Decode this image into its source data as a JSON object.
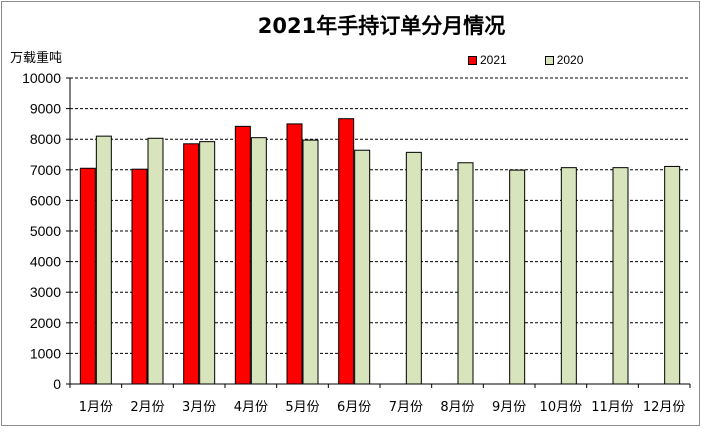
{
  "chart_data": {
    "type": "bar",
    "title": "2021年手持订单分月情况",
    "ylabel": "万载重吨",
    "xlabel": "",
    "ylim": [
      0,
      10000
    ],
    "yticks": [
      0,
      1000,
      2000,
      3000,
      4000,
      5000,
      6000,
      7000,
      8000,
      9000,
      10000
    ],
    "grid": true,
    "legend_position": "top-right",
    "categories": [
      "1月份",
      "2月份",
      "3月份",
      "4月份",
      "5月份",
      "6月份",
      "7月份",
      "8月份",
      "9月份",
      "10月份",
      "11月份",
      "12月份"
    ],
    "series": [
      {
        "name": "2021",
        "color": "#ff0000",
        "values": [
          7050,
          7020,
          7850,
          8420,
          8500,
          8670,
          null,
          null,
          null,
          null,
          null,
          null
        ]
      },
      {
        "name": "2020",
        "color": "#d8e4bc",
        "values": [
          8100,
          8030,
          7920,
          8050,
          7970,
          7640,
          7570,
          7230,
          6990,
          7070,
          7070,
          7110
        ]
      }
    ]
  }
}
